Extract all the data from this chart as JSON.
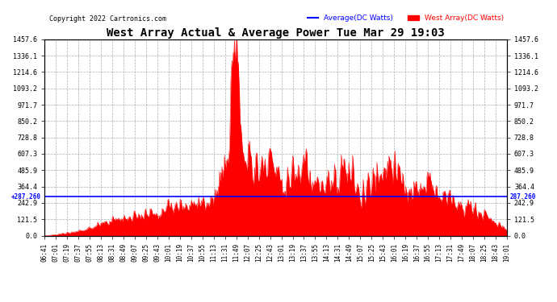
{
  "title": "West Array Actual & Average Power Tue Mar 29 19:03",
  "copyright": "Copyright 2022 Cartronics.com",
  "legend_avg": "Average(DC Watts)",
  "legend_west": "West Array(DC Watts)",
  "avg_line_value": 287.26,
  "avg_line_label": "287.260",
  "y_max": 1457.6,
  "y_min": 0.0,
  "y_ticks": [
    0.0,
    121.5,
    242.9,
    364.4,
    485.9,
    607.3,
    728.8,
    850.2,
    971.7,
    1093.2,
    1214.6,
    1336.1,
    1457.6
  ],
  "background_color": "#ffffff",
  "fill_color": "#ff0000",
  "avg_line_color": "#0000ff",
  "grid_color": "#999999",
  "title_color": "#000000",
  "copyright_color": "#000000",
  "x_tick_labels": [
    "06:41",
    "07:01",
    "07:19",
    "07:37",
    "07:55",
    "08:13",
    "08:31",
    "08:49",
    "09:07",
    "09:25",
    "09:43",
    "10:01",
    "10:19",
    "10:37",
    "10:55",
    "11:13",
    "11:31",
    "11:49",
    "12:07",
    "12:25",
    "12:43",
    "13:01",
    "13:19",
    "13:37",
    "13:55",
    "14:13",
    "14:31",
    "14:49",
    "15:07",
    "15:25",
    "15:43",
    "16:01",
    "16:19",
    "16:37",
    "16:55",
    "17:13",
    "17:31",
    "17:49",
    "18:07",
    "18:25",
    "18:43",
    "19:01"
  ]
}
